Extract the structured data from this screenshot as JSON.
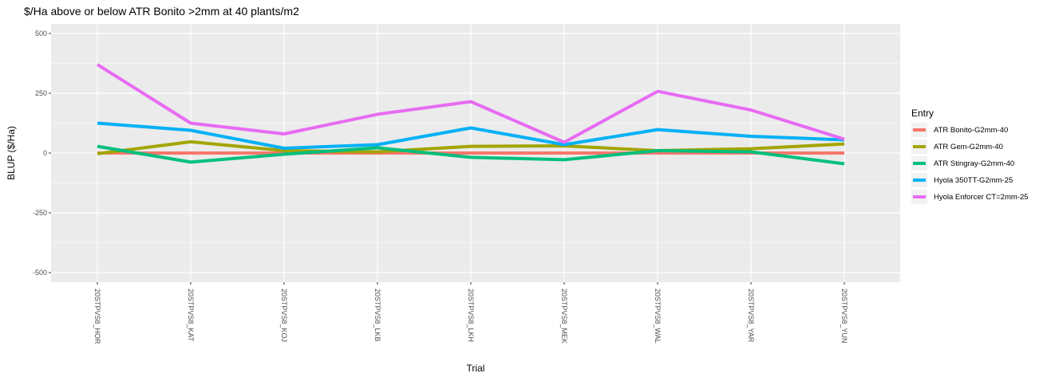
{
  "chart_data": {
    "type": "line",
    "title": "$/Ha above or below ATR Bonito >2mm at 40 plants/m2",
    "xlabel": "Trial",
    "ylabel": "BLUP ($/Ha)",
    "ylim": [
      -540,
      540
    ],
    "y_ticks": [
      -500,
      -250,
      0,
      250,
      500
    ],
    "categories": [
      "20STPVS8_HOR",
      "20STPVS8_KAT",
      "20STPVS8_KOJ",
      "20STPVS8_LKB",
      "20STPVS8_LKH",
      "20STPVS8_MEK",
      "20STPVS8_WAL",
      "20STPVS8_YAR",
      "20STPVS8_YUN"
    ],
    "legend_title": "Entry",
    "legend_position": "right",
    "grid": true,
    "series": [
      {
        "name": "ATR Bonito-G2mm-40",
        "color": "#F8766D",
        "values": [
          0,
          0,
          0,
          0,
          0,
          0,
          0,
          0,
          0
        ]
      },
      {
        "name": "ATR Gem-G2mm-40",
        "color": "#A3A500",
        "values": [
          -3,
          47,
          10,
          5,
          28,
          30,
          10,
          18,
          38
        ]
      },
      {
        "name": "ATR Stingray-G2mm-40",
        "color": "#00BF7D",
        "values": [
          28,
          -38,
          -5,
          22,
          -18,
          -28,
          10,
          5,
          -45
        ]
      },
      {
        "name": "Hyola 350TT-G2mm-25",
        "color": "#00B0F6",
        "values": [
          125,
          95,
          20,
          35,
          105,
          35,
          98,
          70,
          55
        ]
      },
      {
        "name": "Hyola Enforcer CT=2mm-25",
        "color": "#E76BF3",
        "values": [
          370,
          125,
          80,
          162,
          215,
          45,
          258,
          180,
          58
        ]
      }
    ]
  }
}
